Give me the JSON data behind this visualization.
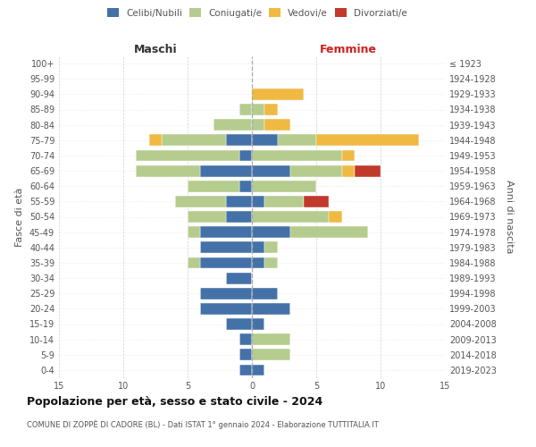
{
  "age_groups": [
    "0-4",
    "5-9",
    "10-14",
    "15-19",
    "20-24",
    "25-29",
    "30-34",
    "35-39",
    "40-44",
    "45-49",
    "50-54",
    "55-59",
    "60-64",
    "65-69",
    "70-74",
    "75-79",
    "80-84",
    "85-89",
    "90-94",
    "95-99",
    "100+"
  ],
  "birth_years": [
    "2019-2023",
    "2014-2018",
    "2009-2013",
    "2004-2008",
    "1999-2003",
    "1994-1998",
    "1989-1993",
    "1984-1988",
    "1979-1983",
    "1974-1978",
    "1969-1973",
    "1964-1968",
    "1959-1963",
    "1954-1958",
    "1949-1953",
    "1944-1948",
    "1939-1943",
    "1934-1938",
    "1929-1933",
    "1924-1928",
    "≤ 1923"
  ],
  "maschi": {
    "celibi": [
      1,
      1,
      1,
      2,
      4,
      4,
      2,
      4,
      4,
      4,
      2,
      2,
      1,
      4,
      1,
      2,
      0,
      0,
      0,
      0,
      0
    ],
    "coniugati": [
      0,
      0,
      0,
      0,
      0,
      0,
      0,
      1,
      0,
      1,
      3,
      4,
      4,
      5,
      8,
      5,
      3,
      1,
      0,
      0,
      0
    ],
    "vedovi": [
      0,
      0,
      0,
      0,
      0,
      0,
      0,
      0,
      0,
      0,
      0,
      0,
      0,
      0,
      0,
      1,
      0,
      0,
      0,
      0,
      0
    ],
    "divorziati": [
      0,
      0,
      0,
      0,
      0,
      0,
      0,
      0,
      0,
      0,
      0,
      0,
      0,
      0,
      0,
      0,
      0,
      0,
      0,
      0,
      0
    ]
  },
  "femmine": {
    "nubili": [
      1,
      0,
      0,
      1,
      3,
      2,
      0,
      1,
      1,
      3,
      0,
      1,
      0,
      3,
      0,
      2,
      0,
      0,
      0,
      0,
      0
    ],
    "coniugate": [
      0,
      3,
      3,
      0,
      0,
      0,
      0,
      1,
      1,
      6,
      6,
      3,
      5,
      4,
      7,
      3,
      1,
      1,
      0,
      0,
      0
    ],
    "vedove": [
      0,
      0,
      0,
      0,
      0,
      0,
      0,
      0,
      0,
      0,
      1,
      0,
      0,
      1,
      1,
      8,
      2,
      1,
      4,
      0,
      0
    ],
    "divorziate": [
      0,
      0,
      0,
      0,
      0,
      0,
      0,
      0,
      0,
      0,
      0,
      2,
      0,
      2,
      0,
      0,
      0,
      0,
      0,
      0,
      0
    ]
  },
  "colors": {
    "celibi": "#4472a8",
    "coniugati": "#b5cc8e",
    "vedovi": "#f0b942",
    "divorziati": "#c0392b"
  },
  "title": "Popolazione per età, sesso e stato civile - 2024",
  "subtitle": "COMUNE DI ZOPPÈ DI CADORE (BL) - Dati ISTAT 1° gennaio 2024 - Elaborazione TUTTITALIA.IT",
  "label_maschi": "Maschi",
  "label_femmine": "Femmine",
  "ylabel_left": "Fasce di età",
  "ylabel_right": "Anni di nascita",
  "xlim": 15,
  "bg_color": "#ffffff",
  "grid_color": "#cccccc",
  "legend_labels": [
    "Celibi/Nubili",
    "Coniugati/e",
    "Vedovi/e",
    "Divorziati/e"
  ]
}
